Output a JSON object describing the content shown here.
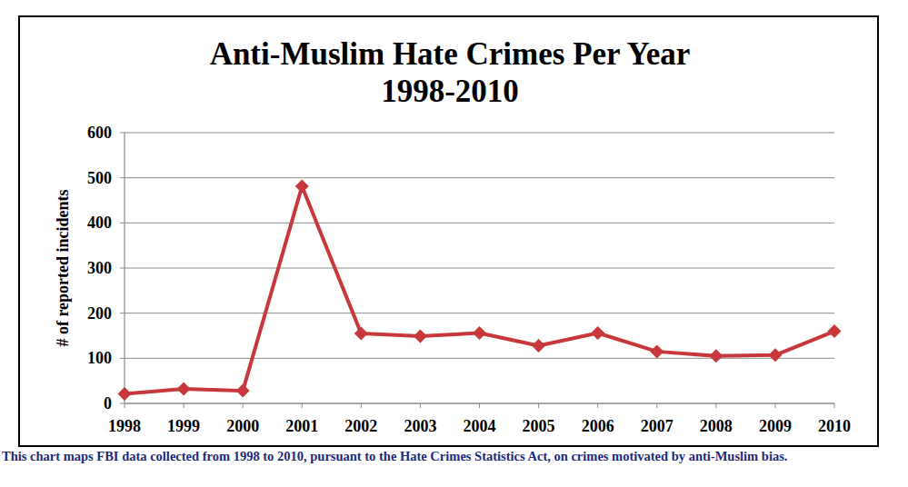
{
  "chart_data": {
    "type": "line",
    "title": "Anti-Muslim Hate Crimes Per Year",
    "subtitle": "1998-2010",
    "y_label": "# of reported incidents",
    "caption": "This chart maps FBI data collected from 1998 to 2010, pursuant to the Hate Crimes Statistics Act, on crimes motivated by anti-Muslim bias.",
    "categories": [
      "1998",
      "1999",
      "2000",
      "2001",
      "2002",
      "2003",
      "2004",
      "2005",
      "2006",
      "2007",
      "2008",
      "2009",
      "2010"
    ],
    "values": [
      21,
      32,
      28,
      481,
      155,
      149,
      156,
      128,
      156,
      115,
      105,
      107,
      160
    ],
    "color": "#c8373b",
    "marker": "diamond",
    "ylim": [
      0,
      600
    ],
    "yticks": [
      0,
      100,
      200,
      300,
      400,
      500,
      600
    ],
    "grid": true
  }
}
